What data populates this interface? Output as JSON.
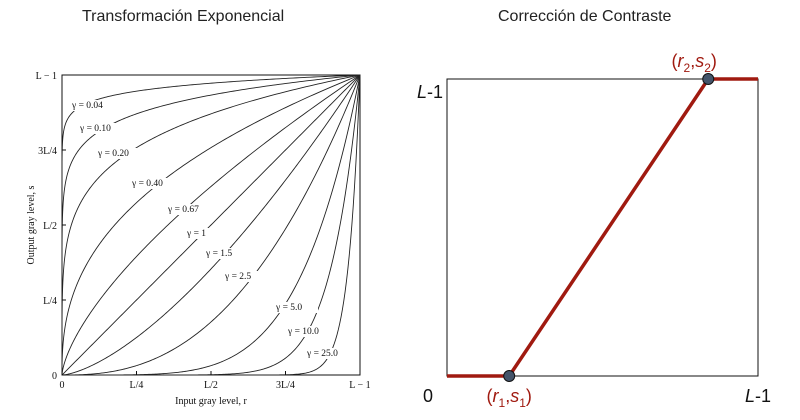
{
  "chart_data": [
    {
      "type": "line",
      "title": "Transformación Exponencial",
      "xlabel": "Input gray level, r",
      "ylabel": "Output gray level, s",
      "x_ticks": [
        "0",
        "L/4",
        "L/2",
        "3L/4",
        "L − 1"
      ],
      "y_ticks": [
        "0",
        "L/4",
        "L/2",
        "3L/4",
        "L − 1"
      ],
      "xlim": [
        0,
        1
      ],
      "ylim": [
        0,
        1
      ],
      "series": [
        {
          "name": "γ = 0.04",
          "gamma": 0.04
        },
        {
          "name": "γ = 0.10",
          "gamma": 0.1
        },
        {
          "name": "γ = 0.20",
          "gamma": 0.2
        },
        {
          "name": "γ = 0.40",
          "gamma": 0.4
        },
        {
          "name": "γ = 0.67",
          "gamma": 0.67
        },
        {
          "name": "γ = 1",
          "gamma": 1
        },
        {
          "name": "γ = 1.5",
          "gamma": 1.5
        },
        {
          "name": "γ = 2.5",
          "gamma": 2.5
        },
        {
          "name": "γ = 5.0",
          "gamma": 5.0
        },
        {
          "name": "γ = 10.0",
          "gamma": 10.0
        },
        {
          "name": "γ = 25.0",
          "gamma": 25.0
        }
      ]
    },
    {
      "type": "line",
      "title": "Corrección de Contraste",
      "x_origin_label": "0",
      "x_max_label": "L-1",
      "y_max_label": "L-1",
      "line_color": "#a01a10",
      "point_color": "#44546a",
      "points": [
        {
          "name": "(r1,s1)",
          "x": 0.2,
          "y": 0
        },
        {
          "name": "(r2,s2)",
          "x": 0.84,
          "y": 1
        }
      ],
      "point_labels": [
        {
          "base1": "r",
          "sub1": "1",
          "base2": "s",
          "sub2": "1"
        },
        {
          "base1": "r",
          "sub1": "2",
          "base2": "s",
          "sub2": "2"
        }
      ]
    }
  ]
}
